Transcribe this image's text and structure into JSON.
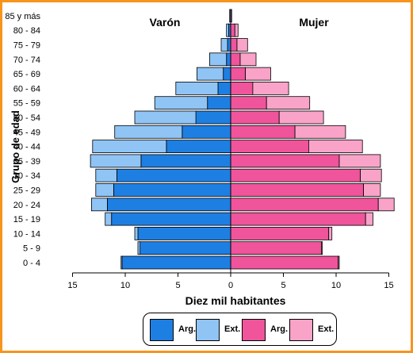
{
  "chart_data": {
    "type": "bar",
    "orientation": "horizontal-population-pyramid",
    "stacked": true,
    "side_labels": {
      "left": "Varón",
      "right": "Mujer"
    },
    "xlabel": "Diez mil habitantes",
    "ylabel": "Grupo de edad",
    "xlim": [
      -15,
      15
    ],
    "x_ticks": [
      -15,
      -10,
      -5,
      0,
      5,
      10,
      15
    ],
    "x_tick_labels": [
      "15",
      "10",
      "5",
      "0",
      "5",
      "10",
      "15"
    ],
    "categories": [
      "0 - 4",
      "5 - 9",
      "10 - 14",
      "15 - 19",
      "20 - 24",
      "25 - 29",
      "30 - 34",
      "35 - 39",
      "40 - 44",
      "45 - 49",
      "50 - 54",
      "55 - 59",
      "60 - 64",
      "65 - 69",
      "70 - 74",
      "75 - 79",
      "80 - 84",
      "85 y más"
    ],
    "series": [
      {
        "name": "Arg.",
        "side": "left",
        "color": "#1e7fe3",
        "values": [
          10.3,
          8.6,
          8.8,
          11.3,
          11.7,
          11.1,
          10.8,
          8.5,
          6.1,
          4.6,
          3.3,
          2.2,
          1.2,
          0.7,
          0.4,
          0.3,
          0.2,
          0.1
        ]
      },
      {
        "name": "Ext.",
        "side": "left",
        "color": "#8fc4f5",
        "values": [
          0.1,
          0.2,
          0.3,
          0.6,
          1.5,
          1.7,
          2.0,
          4.8,
          7.0,
          6.4,
          5.8,
          5.0,
          4.0,
          2.5,
          1.6,
          0.6,
          0.2,
          0.0
        ]
      },
      {
        "name": "Arg.",
        "side": "right",
        "color": "#f0549b",
        "values": [
          10.2,
          8.6,
          9.3,
          12.8,
          14.0,
          12.6,
          12.3,
          10.3,
          7.4,
          6.1,
          4.6,
          3.4,
          2.1,
          1.4,
          0.9,
          0.6,
          0.4,
          0.1
        ]
      },
      {
        "name": "Ext.",
        "side": "right",
        "color": "#f9a3c9",
        "values": [
          0.1,
          0.1,
          0.3,
          0.7,
          1.5,
          1.6,
          2.0,
          3.9,
          5.1,
          4.8,
          4.2,
          4.1,
          3.4,
          2.4,
          1.5,
          1.0,
          0.3,
          0.0
        ]
      }
    ],
    "grid": false,
    "legend_position": "bottom"
  },
  "legend": [
    {
      "label": "Arg.",
      "color": "#1e7fe3"
    },
    {
      "label": "Ext.",
      "color": "#8fc4f5"
    },
    {
      "label": "Arg.",
      "color": "#f0549b"
    },
    {
      "label": "Ext.",
      "color": "#f9a3c9"
    }
  ]
}
